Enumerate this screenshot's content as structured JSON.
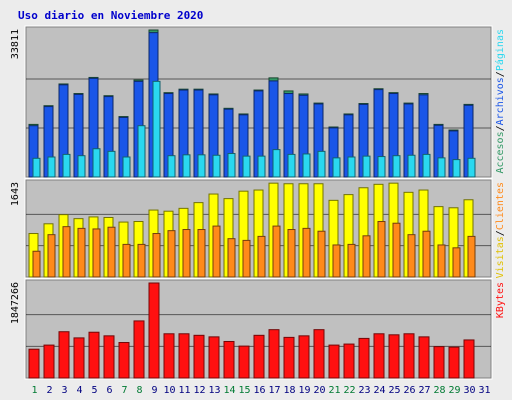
{
  "title": "Uso diario en Noviembre 2020",
  "colors": {
    "background": "#ececec",
    "plot_bg": "#c0c0c0",
    "accesos": "#339966",
    "archivos": "#1a56e8",
    "paginas": "#2ad8f0",
    "visitas": "#ffff00",
    "clientes": "#ff8a1a",
    "kbytes": "#ff1010",
    "weekend_label": "#007a33",
    "weekday_label": "#000080"
  },
  "right_labels": {
    "top": [
      {
        "text": "Accesos",
        "color": "#339966"
      },
      {
        "text": "Archivos",
        "color": "#1a56e8"
      },
      {
        "text": "Páginas",
        "color": "#2ad8f0"
      }
    ],
    "middle": [
      {
        "text": "Visitas",
        "color": "#e0c000"
      },
      {
        "text": "Clientes",
        "color": "#ff8a1a"
      }
    ],
    "bottom": [
      {
        "text": "KBytes",
        "color": "#ff1010"
      }
    ]
  },
  "chart_data": [
    {
      "type": "bar",
      "panel": "top",
      "y_max_label": "33811",
      "ylim": [
        0,
        33811
      ],
      "categories": [
        "1",
        "2",
        "3",
        "4",
        "5",
        "6",
        "7",
        "8",
        "9",
        "10",
        "11",
        "12",
        "13",
        "14",
        "15",
        "16",
        "17",
        "18",
        "19",
        "20",
        "21",
        "22",
        "23",
        "24",
        "25",
        "26",
        "27",
        "28",
        "29",
        "30",
        "31"
      ],
      "weekend_days": [
        1,
        7,
        8,
        14,
        15,
        21,
        22,
        28,
        29
      ],
      "series": [
        {
          "name": "Accesos",
          "values": [
            12100,
            16400,
            21400,
            19200,
            22900,
            18700,
            13900,
            22300,
            33811,
            19400,
            20200,
            20200,
            19100,
            15800,
            14500,
            20000,
            22800,
            19800,
            19100,
            17000,
            11500,
            14500,
            16900,
            20300,
            19400,
            17000,
            19200,
            12100,
            10800,
            16700,
            0
          ]
        },
        {
          "name": "Archivos",
          "values": [
            11800,
            16200,
            21200,
            19000,
            22700,
            18500,
            13700,
            22000,
            33200,
            19200,
            20000,
            20000,
            18900,
            15600,
            14300,
            19800,
            22100,
            19200,
            18800,
            16800,
            11300,
            14300,
            16700,
            20100,
            19200,
            16800,
            18900,
            11900,
            10600,
            16500,
            0
          ]
        },
        {
          "name": "Páginas",
          "values": [
            4300,
            4600,
            5200,
            4900,
            6500,
            5900,
            4600,
            11800,
            22000,
            4900,
            5100,
            5100,
            5000,
            5400,
            4800,
            4800,
            6300,
            5200,
            5300,
            5900,
            4400,
            4600,
            4800,
            4700,
            4900,
            5000,
            5200,
            4400,
            4000,
            4300,
            0
          ]
        }
      ]
    },
    {
      "type": "bar",
      "panel": "middle",
      "y_max_label": "1643",
      "ylim": [
        0,
        1643
      ],
      "categories": [
        "1",
        "2",
        "3",
        "4",
        "5",
        "6",
        "7",
        "8",
        "9",
        "10",
        "11",
        "12",
        "13",
        "14",
        "15",
        "16",
        "17",
        "18",
        "19",
        "20",
        "21",
        "22",
        "23",
        "24",
        "25",
        "26",
        "27",
        "28",
        "29",
        "30",
        "31"
      ],
      "series": [
        {
          "name": "Visitas",
          "values": [
            760,
            930,
            1090,
            1020,
            1050,
            1040,
            960,
            970,
            1170,
            1150,
            1200,
            1300,
            1450,
            1370,
            1500,
            1520,
            1640,
            1630,
            1630,
            1630,
            1340,
            1440,
            1560,
            1620,
            1640,
            1480,
            1520,
            1230,
            1210,
            1350,
            0
          ]
        },
        {
          "name": "Clientes",
          "values": [
            450,
            740,
            880,
            850,
            840,
            870,
            570,
            570,
            760,
            810,
            830,
            830,
            890,
            670,
            640,
            710,
            890,
            830,
            850,
            800,
            560,
            570,
            720,
            970,
            940,
            740,
            800,
            560,
            510,
            710,
            0
          ]
        }
      ]
    },
    {
      "type": "bar",
      "panel": "bottom",
      "y_max_label": "1847266",
      "ylim": [
        0,
        1847266
      ],
      "categories": [
        "1",
        "2",
        "3",
        "4",
        "5",
        "6",
        "7",
        "8",
        "9",
        "10",
        "11",
        "12",
        "13",
        "14",
        "15",
        "16",
        "17",
        "18",
        "19",
        "20",
        "21",
        "22",
        "23",
        "24",
        "25",
        "26",
        "27",
        "28",
        "29",
        "30",
        "31"
      ],
      "series": [
        {
          "name": "KBytes",
          "values": [
            560000,
            640000,
            900000,
            780000,
            890000,
            820000,
            690000,
            1110000,
            1847266,
            860000,
            860000,
            830000,
            800000,
            710000,
            620000,
            830000,
            940000,
            790000,
            820000,
            940000,
            640000,
            660000,
            770000,
            860000,
            840000,
            860000,
            800000,
            610000,
            600000,
            740000,
            0
          ]
        }
      ]
    }
  ]
}
